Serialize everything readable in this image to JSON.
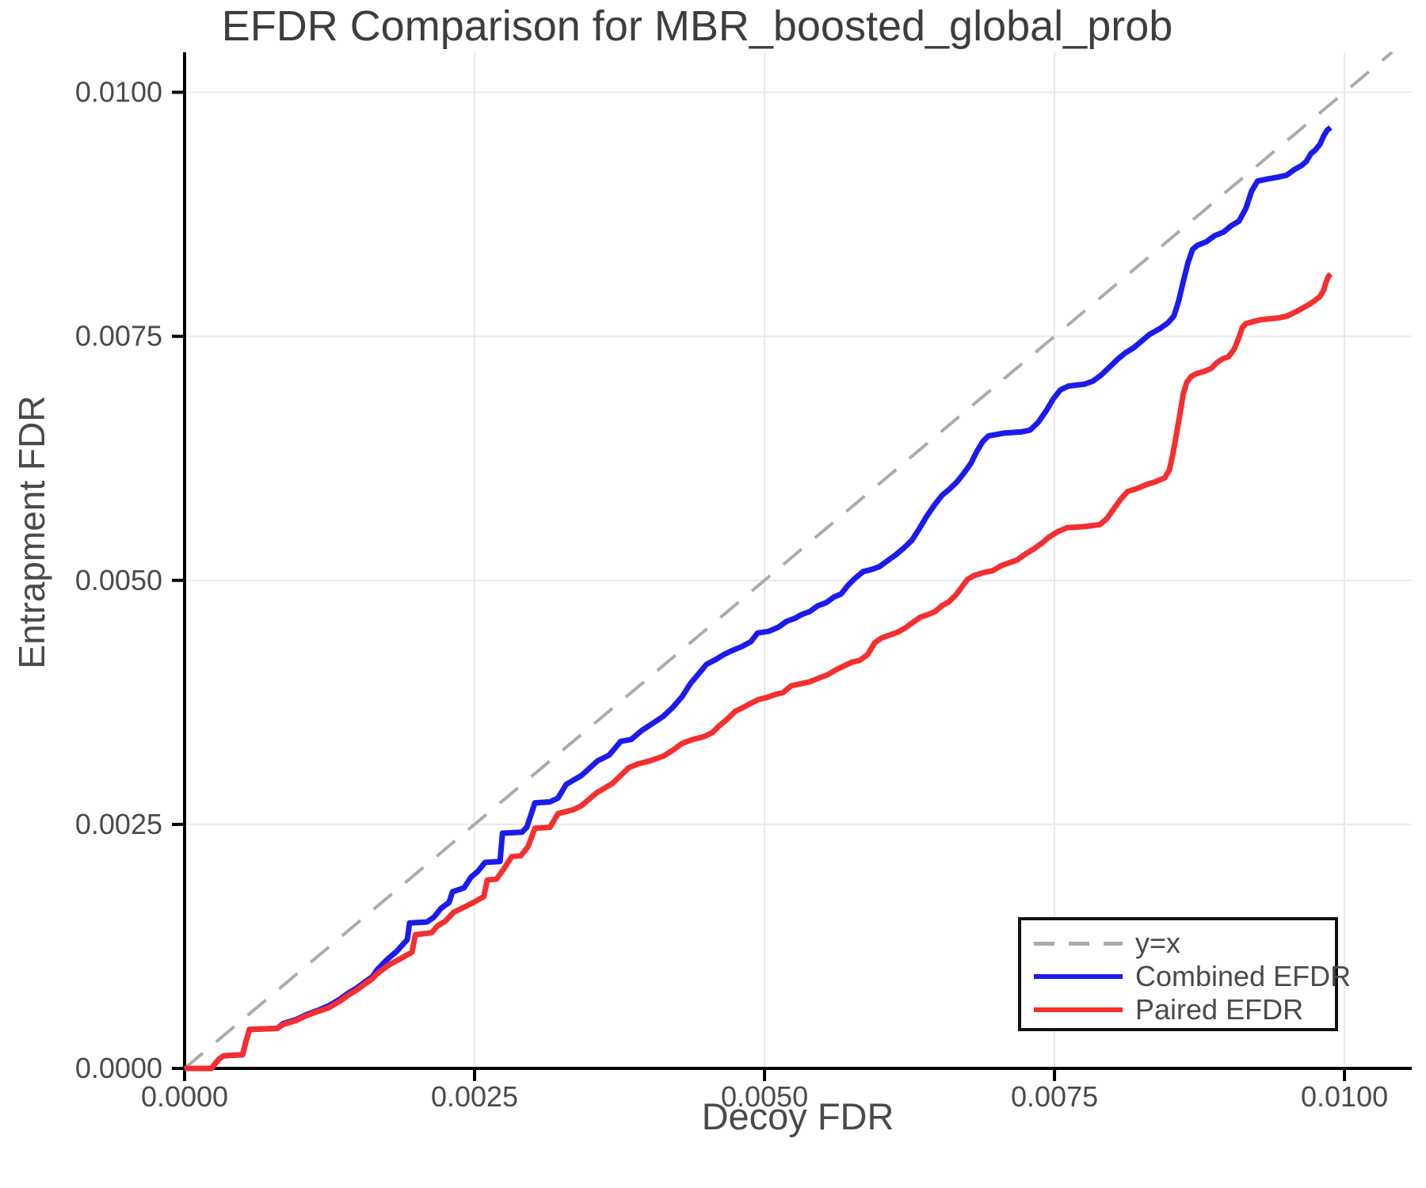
{
  "title": "EFDR Comparison for MBR_boosted_global_prob",
  "axes": {
    "x_label": "Decoy FDR",
    "y_label": "Entrapment FDR",
    "x_tick_labels": [
      "0.0000",
      "0.0025",
      "0.0050",
      "0.0075",
      "0.0100"
    ],
    "y_tick_labels": [
      "0.0000",
      "0.0025",
      "0.0050",
      "0.0075",
      "0.0100"
    ],
    "x_tick_values": [
      0.0,
      0.0025,
      0.005,
      0.0075,
      0.01
    ],
    "y_tick_values": [
      0.0,
      0.0025,
      0.005,
      0.0075,
      0.01
    ]
  },
  "legend": {
    "items": [
      {
        "label": "y=x",
        "color": "#ababab",
        "dashed": true
      },
      {
        "label": "Combined EFDR",
        "color": "#1b1bf0",
        "dashed": false
      },
      {
        "label": "Paired EFDR",
        "color": "#f52f2f",
        "dashed": false
      }
    ]
  },
  "colors": {
    "grid": "#e9e9e9",
    "spine": "#000000",
    "tick_label": "#4a4a4a",
    "title": "#3d3d3d",
    "identity_line": "#ababab",
    "combined_line": "#1b1bf0",
    "paired_line": "#f52f2f"
  },
  "chart_data": {
    "type": "line",
    "title": "EFDR Comparison for MBR_boosted_global_prob",
    "xlabel": "Decoy FDR",
    "ylabel": "Entrapment FDR",
    "xlim": [
      0.0,
      0.01058
    ],
    "ylim": [
      0.0,
      0.01041
    ],
    "grid": true,
    "legend_position": "bottom-right",
    "series": [
      {
        "name": "y=x",
        "color": "#ababab",
        "style": "dashed",
        "width": 4,
        "points": [
          [
            0.0,
            0.0
          ],
          [
            0.01041,
            0.01041
          ]
        ]
      },
      {
        "name": "Combined EFDR",
        "color": "#1b1bf0",
        "style": "solid",
        "width": 7,
        "points": [
          [
            0.0,
            0.0
          ],
          [
            0.00023,
            0.0
          ],
          [
            0.0003,
            0.0001
          ],
          [
            0.00034,
            0.00013
          ],
          [
            0.0005,
            0.00014
          ],
          [
            0.00053,
            0.00028
          ],
          [
            0.00056,
            0.0004
          ],
          [
            0.0008,
            0.00041
          ],
          [
            0.00085,
            0.00046
          ],
          [
            0.00096,
            0.0005
          ],
          [
            0.00105,
            0.00055
          ],
          [
            0.00114,
            0.00059
          ],
          [
            0.00124,
            0.00064
          ],
          [
            0.00134,
            0.00071
          ],
          [
            0.00141,
            0.00077
          ],
          [
            0.00148,
            0.00082
          ],
          [
            0.00155,
            0.00088
          ],
          [
            0.00162,
            0.00094
          ],
          [
            0.00166,
            0.00101
          ],
          [
            0.00175,
            0.00112
          ],
          [
            0.00183,
            0.0012
          ],
          [
            0.00192,
            0.00132
          ],
          [
            0.00194,
            0.00149
          ],
          [
            0.00209,
            0.0015
          ],
          [
            0.00215,
            0.00155
          ],
          [
            0.00221,
            0.00164
          ],
          [
            0.00228,
            0.0017
          ],
          [
            0.00231,
            0.00181
          ],
          [
            0.00241,
            0.00185
          ],
          [
            0.00247,
            0.00196
          ],
          [
            0.00253,
            0.00202
          ],
          [
            0.00259,
            0.00211
          ],
          [
            0.00272,
            0.00212
          ],
          [
            0.00274,
            0.00241
          ],
          [
            0.00291,
            0.00242
          ],
          [
            0.00295,
            0.00247
          ],
          [
            0.00302,
            0.00272
          ],
          [
            0.00315,
            0.00273
          ],
          [
            0.00322,
            0.00277
          ],
          [
            0.00329,
            0.00291
          ],
          [
            0.00342,
            0.003
          ],
          [
            0.00356,
            0.00315
          ],
          [
            0.00366,
            0.00321
          ],
          [
            0.00376,
            0.00335
          ],
          [
            0.00385,
            0.00337
          ],
          [
            0.00394,
            0.00346
          ],
          [
            0.00403,
            0.00353
          ],
          [
            0.00413,
            0.00361
          ],
          [
            0.00421,
            0.0037
          ],
          [
            0.00429,
            0.00381
          ],
          [
            0.00436,
            0.00394
          ],
          [
            0.00443,
            0.00404
          ],
          [
            0.0045,
            0.00414
          ],
          [
            0.00458,
            0.00419
          ],
          [
            0.00465,
            0.00424
          ],
          [
            0.00472,
            0.00428
          ],
          [
            0.0048,
            0.00432
          ],
          [
            0.00488,
            0.00437
          ],
          [
            0.00494,
            0.00446
          ],
          [
            0.00504,
            0.00448
          ],
          [
            0.00512,
            0.00452
          ],
          [
            0.00519,
            0.00458
          ],
          [
            0.00526,
            0.00461
          ],
          [
            0.00532,
            0.00465
          ],
          [
            0.00539,
            0.00468
          ],
          [
            0.00546,
            0.00474
          ],
          [
            0.00553,
            0.00477
          ],
          [
            0.0056,
            0.00483
          ],
          [
            0.00566,
            0.00486
          ],
          [
            0.00572,
            0.00495
          ],
          [
            0.00578,
            0.00502
          ],
          [
            0.00585,
            0.00509
          ],
          [
            0.00592,
            0.00511
          ],
          [
            0.00599,
            0.00514
          ],
          [
            0.00606,
            0.0052
          ],
          [
            0.00613,
            0.00526
          ],
          [
            0.0062,
            0.00533
          ],
          [
            0.00627,
            0.00541
          ],
          [
            0.00634,
            0.00554
          ],
          [
            0.0064,
            0.00566
          ],
          [
            0.00647,
            0.00578
          ],
          [
            0.00653,
            0.00587
          ],
          [
            0.0066,
            0.00594
          ],
          [
            0.00666,
            0.00601
          ],
          [
            0.00672,
            0.0061
          ],
          [
            0.00678,
            0.0062
          ],
          [
            0.00683,
            0.00632
          ],
          [
            0.00688,
            0.00642
          ],
          [
            0.00693,
            0.00648
          ],
          [
            0.00707,
            0.00651
          ],
          [
            0.00721,
            0.00652
          ],
          [
            0.00729,
            0.00654
          ],
          [
            0.00736,
            0.00662
          ],
          [
            0.00743,
            0.00674
          ],
          [
            0.00749,
            0.00686
          ],
          [
            0.00755,
            0.00695
          ],
          [
            0.00762,
            0.00699
          ],
          [
            0.00776,
            0.00701
          ],
          [
            0.00783,
            0.00704
          ],
          [
            0.0079,
            0.0071
          ],
          [
            0.00797,
            0.00718
          ],
          [
            0.00804,
            0.00726
          ],
          [
            0.00811,
            0.00733
          ],
          [
            0.00818,
            0.00738
          ],
          [
            0.00825,
            0.00745
          ],
          [
            0.00832,
            0.00752
          ],
          [
            0.00841,
            0.00758
          ],
          [
            0.00848,
            0.00764
          ],
          [
            0.00853,
            0.00771
          ],
          [
            0.00857,
            0.00786
          ],
          [
            0.00861,
            0.00806
          ],
          [
            0.00865,
            0.00825
          ],
          [
            0.00869,
            0.00839
          ],
          [
            0.00873,
            0.00843
          ],
          [
            0.00881,
            0.00847
          ],
          [
            0.00888,
            0.00853
          ],
          [
            0.00896,
            0.00857
          ],
          [
            0.00902,
            0.00863
          ],
          [
            0.00909,
            0.00868
          ],
          [
            0.00915,
            0.00881
          ],
          [
            0.0092,
            0.00899
          ],
          [
            0.00925,
            0.00909
          ],
          [
            0.00933,
            0.00911
          ],
          [
            0.00942,
            0.00913
          ],
          [
            0.0095,
            0.00915
          ],
          [
            0.00957,
            0.00921
          ],
          [
            0.00963,
            0.00925
          ],
          [
            0.00967,
            0.00929
          ],
          [
            0.00971,
            0.00937
          ],
          [
            0.00975,
            0.00941
          ],
          [
            0.00979,
            0.00947
          ],
          [
            0.00982,
            0.00955
          ],
          [
            0.00985,
            0.00961
          ],
          [
            0.00988,
            0.00964
          ]
        ]
      },
      {
        "name": "Paired EFDR",
        "color": "#f52f2f",
        "style": "solid",
        "width": 7,
        "points": [
          [
            0.0,
            0.0
          ],
          [
            0.00023,
            0.0
          ],
          [
            0.0003,
            0.0001
          ],
          [
            0.00034,
            0.00013
          ],
          [
            0.0005,
            0.00014
          ],
          [
            0.00053,
            0.00028
          ],
          [
            0.00056,
            0.0004
          ],
          [
            0.0008,
            0.00041
          ],
          [
            0.00085,
            0.00045
          ],
          [
            0.00096,
            0.00049
          ],
          [
            0.00105,
            0.00054
          ],
          [
            0.00114,
            0.00058
          ],
          [
            0.00124,
            0.00062
          ],
          [
            0.00134,
            0.00069
          ],
          [
            0.00141,
            0.00075
          ],
          [
            0.00148,
            0.0008
          ],
          [
            0.00155,
            0.00086
          ],
          [
            0.00162,
            0.00092
          ],
          [
            0.00166,
            0.00097
          ],
          [
            0.00176,
            0.00106
          ],
          [
            0.00184,
            0.00111
          ],
          [
            0.00196,
            0.00119
          ],
          [
            0.00199,
            0.00137
          ],
          [
            0.00213,
            0.00139
          ],
          [
            0.00218,
            0.00146
          ],
          [
            0.00225,
            0.00151
          ],
          [
            0.00232,
            0.0016
          ],
          [
            0.00239,
            0.00164
          ],
          [
            0.00249,
            0.0017
          ],
          [
            0.00258,
            0.00176
          ],
          [
            0.00261,
            0.00193
          ],
          [
            0.00269,
            0.00194
          ],
          [
            0.00275,
            0.00204
          ],
          [
            0.00282,
            0.00217
          ],
          [
            0.0029,
            0.00218
          ],
          [
            0.00296,
            0.00227
          ],
          [
            0.00302,
            0.00246
          ],
          [
            0.00315,
            0.00247
          ],
          [
            0.00322,
            0.00261
          ],
          [
            0.00335,
            0.00265
          ],
          [
            0.00342,
            0.00269
          ],
          [
            0.00355,
            0.00282
          ],
          [
            0.00369,
            0.00292
          ],
          [
            0.00383,
            0.00308
          ],
          [
            0.00391,
            0.00312
          ],
          [
            0.00401,
            0.00315
          ],
          [
            0.00413,
            0.0032
          ],
          [
            0.00421,
            0.00326
          ],
          [
            0.00429,
            0.00333
          ],
          [
            0.00438,
            0.00337
          ],
          [
            0.00448,
            0.0034
          ],
          [
            0.00455,
            0.00344
          ],
          [
            0.00461,
            0.00351
          ],
          [
            0.00468,
            0.00358
          ],
          [
            0.00475,
            0.00366
          ],
          [
            0.00482,
            0.0037
          ],
          [
            0.00488,
            0.00374
          ],
          [
            0.00495,
            0.00378
          ],
          [
            0.00502,
            0.0038
          ],
          [
            0.00509,
            0.00383
          ],
          [
            0.00516,
            0.00385
          ],
          [
            0.00523,
            0.00392
          ],
          [
            0.00531,
            0.00394
          ],
          [
            0.00539,
            0.00396
          ],
          [
            0.00547,
            0.004
          ],
          [
            0.00554,
            0.00403
          ],
          [
            0.00561,
            0.00408
          ],
          [
            0.00568,
            0.00412
          ],
          [
            0.00575,
            0.00416
          ],
          [
            0.00582,
            0.00418
          ],
          [
            0.00589,
            0.00424
          ],
          [
            0.00595,
            0.00436
          ],
          [
            0.00601,
            0.00441
          ],
          [
            0.00608,
            0.00444
          ],
          [
            0.00615,
            0.00447
          ],
          [
            0.00621,
            0.00451
          ],
          [
            0.00628,
            0.00457
          ],
          [
            0.00634,
            0.00462
          ],
          [
            0.00641,
            0.00465
          ],
          [
            0.00647,
            0.00468
          ],
          [
            0.00653,
            0.00474
          ],
          [
            0.00659,
            0.00478
          ],
          [
            0.00665,
            0.00485
          ],
          [
            0.0067,
            0.00493
          ],
          [
            0.00675,
            0.00501
          ],
          [
            0.00681,
            0.00505
          ],
          [
            0.00689,
            0.00508
          ],
          [
            0.00697,
            0.0051
          ],
          [
            0.00704,
            0.00515
          ],
          [
            0.00711,
            0.00518
          ],
          [
            0.00718,
            0.00521
          ],
          [
            0.00725,
            0.00527
          ],
          [
            0.00732,
            0.00532
          ],
          [
            0.00739,
            0.00538
          ],
          [
            0.00745,
            0.00544
          ],
          [
            0.00753,
            0.0055
          ],
          [
            0.00761,
            0.00554
          ],
          [
            0.00775,
            0.00555
          ],
          [
            0.00789,
            0.00557
          ],
          [
            0.00795,
            0.00563
          ],
          [
            0.00801,
            0.00573
          ],
          [
            0.00807,
            0.00583
          ],
          [
            0.00813,
            0.00591
          ],
          [
            0.00821,
            0.00594
          ],
          [
            0.00829,
            0.00598
          ],
          [
            0.00837,
            0.00601
          ],
          [
            0.00845,
            0.00605
          ],
          [
            0.00849,
            0.00613
          ],
          [
            0.00852,
            0.00629
          ],
          [
            0.00855,
            0.00649
          ],
          [
            0.00858,
            0.00669
          ],
          [
            0.00861,
            0.00691
          ],
          [
            0.00864,
            0.00703
          ],
          [
            0.00868,
            0.00709
          ],
          [
            0.00873,
            0.00712
          ],
          [
            0.00879,
            0.00714
          ],
          [
            0.00885,
            0.00717
          ],
          [
            0.0089,
            0.00723
          ],
          [
            0.00895,
            0.00727
          ],
          [
            0.009,
            0.00729
          ],
          [
            0.00905,
            0.00737
          ],
          [
            0.00909,
            0.00749
          ],
          [
            0.00912,
            0.00759
          ],
          [
            0.00915,
            0.00763
          ],
          [
            0.00921,
            0.00765
          ],
          [
            0.00928,
            0.00767
          ],
          [
            0.00936,
            0.00768
          ],
          [
            0.00944,
            0.00769
          ],
          [
            0.00951,
            0.00771
          ],
          [
            0.00958,
            0.00775
          ],
          [
            0.00964,
            0.00779
          ],
          [
            0.0097,
            0.00783
          ],
          [
            0.00975,
            0.00787
          ],
          [
            0.00979,
            0.00791
          ],
          [
            0.00982,
            0.00797
          ],
          [
            0.00984,
            0.00805
          ],
          [
            0.00986,
            0.00811
          ],
          [
            0.00988,
            0.00814
          ]
        ]
      }
    ]
  }
}
